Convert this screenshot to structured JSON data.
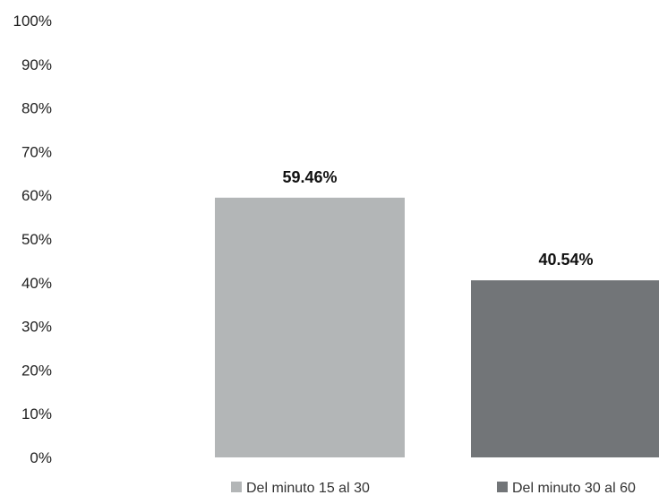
{
  "chart_data": {
    "type": "bar",
    "categories": [
      "Del minuto 15 al 30",
      "Del minuto 30 al 60"
    ],
    "values": [
      59.46,
      40.54
    ],
    "value_labels": [
      "59.46%",
      "40.54%"
    ],
    "colors": [
      "#b3b6b7",
      "#727578"
    ],
    "ylim": [
      0,
      100
    ],
    "yticks": [
      0,
      10,
      20,
      30,
      40,
      50,
      60,
      70,
      80,
      90,
      100
    ],
    "ytick_labels": [
      "0%",
      "10%",
      "20%",
      "30%",
      "40%",
      "50%",
      "60%",
      "70%",
      "80%",
      "90%",
      "100%"
    ],
    "grid": false,
    "legend_position": "bottom"
  }
}
